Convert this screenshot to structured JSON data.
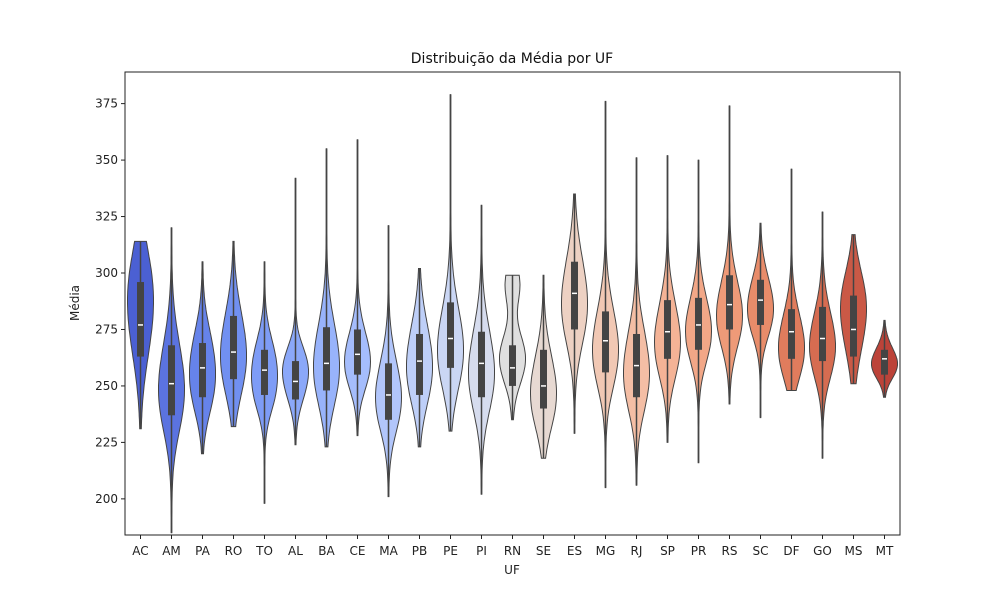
{
  "chart_data": {
    "type": "violin",
    "title": "Distribuição da Média por UF",
    "xlabel": "UF",
    "ylabel": "Média",
    "ylim": [
      184,
      389
    ],
    "yticks": [
      200,
      225,
      250,
      275,
      300,
      325,
      350,
      375
    ],
    "grid": false,
    "legend": "none",
    "categories": [
      {
        "name": "AC",
        "color": "#4b60d3",
        "min": 231,
        "q1": 263,
        "median": 277,
        "q3": 296,
        "max": 314,
        "peak": 279,
        "peak2": 300
      },
      {
        "name": "AM",
        "color": "#5b73e0",
        "min": 185,
        "q1": 237,
        "median": 251,
        "q3": 268,
        "max": 320,
        "peak": 255,
        "peak2": 240
      },
      {
        "name": "PA",
        "color": "#6683ea",
        "min": 220,
        "q1": 245,
        "median": 258,
        "q3": 269,
        "max": 305,
        "peak": 262,
        "peak2": 245
      },
      {
        "name": "RO",
        "color": "#7190f1",
        "min": 232,
        "q1": 253,
        "median": 265,
        "q3": 281,
        "max": 314,
        "peak": 270,
        "peak2": 255
      },
      {
        "name": "TO",
        "color": "#7e9cf6",
        "min": 198,
        "q1": 246,
        "median": 257,
        "q3": 266,
        "max": 305,
        "peak": 260,
        "peak2": 245
      },
      {
        "name": "AL",
        "color": "#8ba8f9",
        "min": 224,
        "q1": 244,
        "median": 252,
        "q3": 261,
        "max": 342,
        "peak": 252,
        "peak2": 262
      },
      {
        "name": "BA",
        "color": "#98b3fb",
        "min": 223,
        "q1": 248,
        "median": 260,
        "q3": 276,
        "max": 355,
        "peak": 265,
        "peak2": 250
      },
      {
        "name": "CE",
        "color": "#a5bdfc",
        "min": 228,
        "q1": 255,
        "median": 264,
        "q3": 275,
        "max": 359,
        "peak": 265,
        "peak2": 255
      },
      {
        "name": "MA",
        "color": "#b2c6fb",
        "min": 201,
        "q1": 235,
        "median": 246,
        "q3": 260,
        "max": 321,
        "peak": 250,
        "peak2": 238
      },
      {
        "name": "PB",
        "color": "#becff8",
        "min": 223,
        "q1": 246,
        "median": 261,
        "q3": 273,
        "max": 302,
        "peak": 265,
        "peak2": 250
      },
      {
        "name": "PE",
        "color": "#cad6f4",
        "min": 230,
        "q1": 258,
        "median": 271,
        "q3": 287,
        "max": 379,
        "peak": 272,
        "peak2": 258
      },
      {
        "name": "PI",
        "color": "#d6dcee",
        "min": 202,
        "q1": 245,
        "median": 260,
        "q3": 274,
        "max": 330,
        "peak": 262,
        "peak2": 248
      },
      {
        "name": "RN",
        "color": "#dfdfdf",
        "min": 235,
        "q1": 250,
        "median": 258,
        "q3": 268,
        "max": 299,
        "peak": 262,
        "peak2": 295
      },
      {
        "name": "SE",
        "color": "#e7d9d2",
        "min": 218,
        "q1": 240,
        "median": 250,
        "q3": 266,
        "max": 299,
        "peak": 252,
        "peak2": 240
      },
      {
        "name": "ES",
        "color": "#edd1c3",
        "min": 229,
        "q1": 275,
        "median": 291,
        "q3": 305,
        "max": 335,
        "peak": 293,
        "peak2": 278
      },
      {
        "name": "MG",
        "color": "#f1c8b4",
        "min": 205,
        "q1": 256,
        "median": 270,
        "q3": 283,
        "max": 376,
        "peak": 272,
        "peak2": 258
      },
      {
        "name": "RJ",
        "color": "#f4bea5",
        "min": 206,
        "q1": 245,
        "median": 259,
        "q3": 273,
        "max": 351,
        "peak": 262,
        "peak2": 248
      },
      {
        "name": "SP",
        "color": "#f4b396",
        "min": 225,
        "q1": 262,
        "median": 274,
        "q3": 288,
        "max": 352,
        "peak": 275,
        "peak2": 262
      },
      {
        "name": "PR",
        "color": "#f2a787",
        "min": 216,
        "q1": 266,
        "median": 277,
        "q3": 289,
        "max": 350,
        "peak": 279,
        "peak2": 268
      },
      {
        "name": "RS",
        "color": "#ee9a78",
        "min": 242,
        "q1": 275,
        "median": 286,
        "q3": 299,
        "max": 374,
        "peak": 286,
        "peak2": 275
      },
      {
        "name": "SC",
        "color": "#e88c6a",
        "min": 236,
        "q1": 277,
        "median": 288,
        "q3": 297,
        "max": 322,
        "peak": 289,
        "peak2": 278
      },
      {
        "name": "DF",
        "color": "#e07c5d",
        "min": 248,
        "q1": 262,
        "median": 274,
        "q3": 284,
        "max": 346,
        "peak": 272,
        "peak2": 260
      },
      {
        "name": "GO",
        "color": "#d66c51",
        "min": 218,
        "q1": 261,
        "median": 271,
        "q3": 285,
        "max": 327,
        "peak": 272,
        "peak2": 262
      },
      {
        "name": "MS",
        "color": "#ca5946",
        "min": 251,
        "q1": 263,
        "median": 275,
        "q3": 290,
        "max": 317,
        "peak": 278,
        "peak2": 292
      },
      {
        "name": "MT",
        "color": "#bc4339",
        "min": 245,
        "q1": 255,
        "median": 262,
        "q3": 266,
        "max": 279,
        "peak": 262,
        "peak2": 257
      }
    ]
  }
}
